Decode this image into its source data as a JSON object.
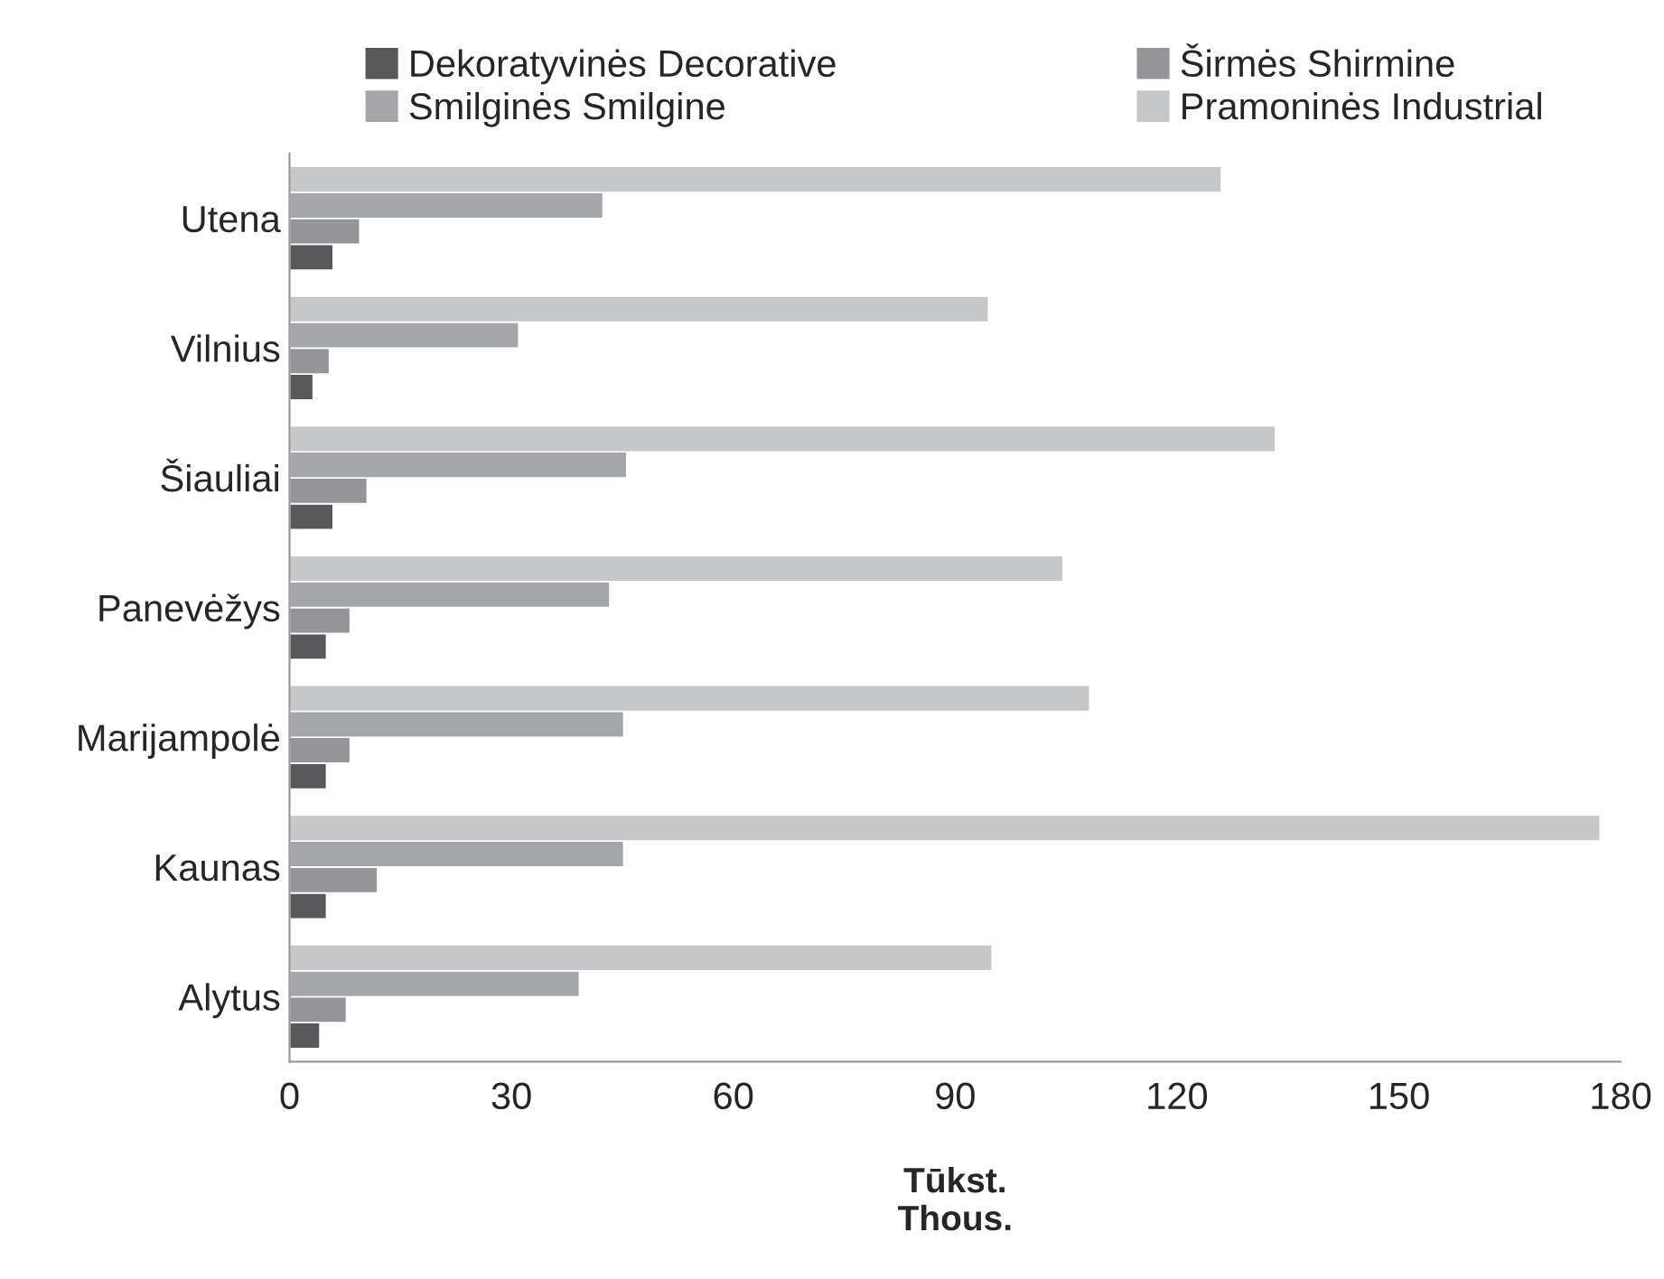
{
  "chart_data": {
    "type": "bar",
    "orientation": "horizontal",
    "xlabel": "Tūkst.\nThous.",
    "categories": [
      "Utena",
      "Vilnius",
      "Šiauliai",
      "Panevėžys",
      "Marijampolė",
      "Kaunas",
      "Alytus"
    ],
    "series": [
      {
        "name": "Dekoratyvinės Decorative",
        "color": "#58585a",
        "values": [
          5.9,
          3.2,
          5.9,
          5.0,
          5.0,
          5.0,
          4.1
        ]
      },
      {
        "name": "Širmės Shirmine",
        "color": "#949598",
        "values": [
          9.5,
          5.4,
          10.5,
          8.2,
          8.2,
          11.9,
          7.7
        ]
      },
      {
        "name": "Smilginės Smilgine",
        "color": "#a5a6a9",
        "values": [
          42.4,
          31,
          45.6,
          43.3,
          45.2,
          45.2,
          39.2
        ]
      },
      {
        "name": "Pramoninės Industrial",
        "color": "#c6c7c9",
        "values": [
          126,
          94.5,
          133.3,
          104.6,
          108.2,
          177.2,
          95
        ]
      }
    ],
    "xlim": [
      0,
      180
    ],
    "xticks": [
      0,
      30,
      60,
      90,
      120,
      150,
      180
    ],
    "grid": false,
    "legend": "top"
  }
}
